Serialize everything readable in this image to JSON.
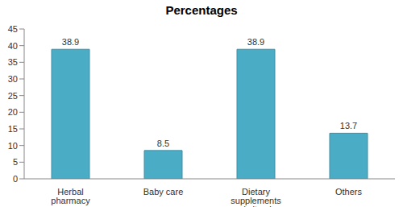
{
  "chart_data": {
    "type": "bar",
    "title": "Percentages",
    "categories": [
      "Herbal pharmacy",
      "Baby care",
      "Dietary supplements and vitamins",
      "Others"
    ],
    "values": [
      38.9,
      8.5,
      38.9,
      13.7
    ],
    "color": "#4bacc6",
    "ylim": [
      0,
      45
    ],
    "yticks": [
      0,
      5,
      10,
      15,
      20,
      25,
      30,
      35,
      40,
      45
    ],
    "grid": false,
    "data_labels": true
  }
}
